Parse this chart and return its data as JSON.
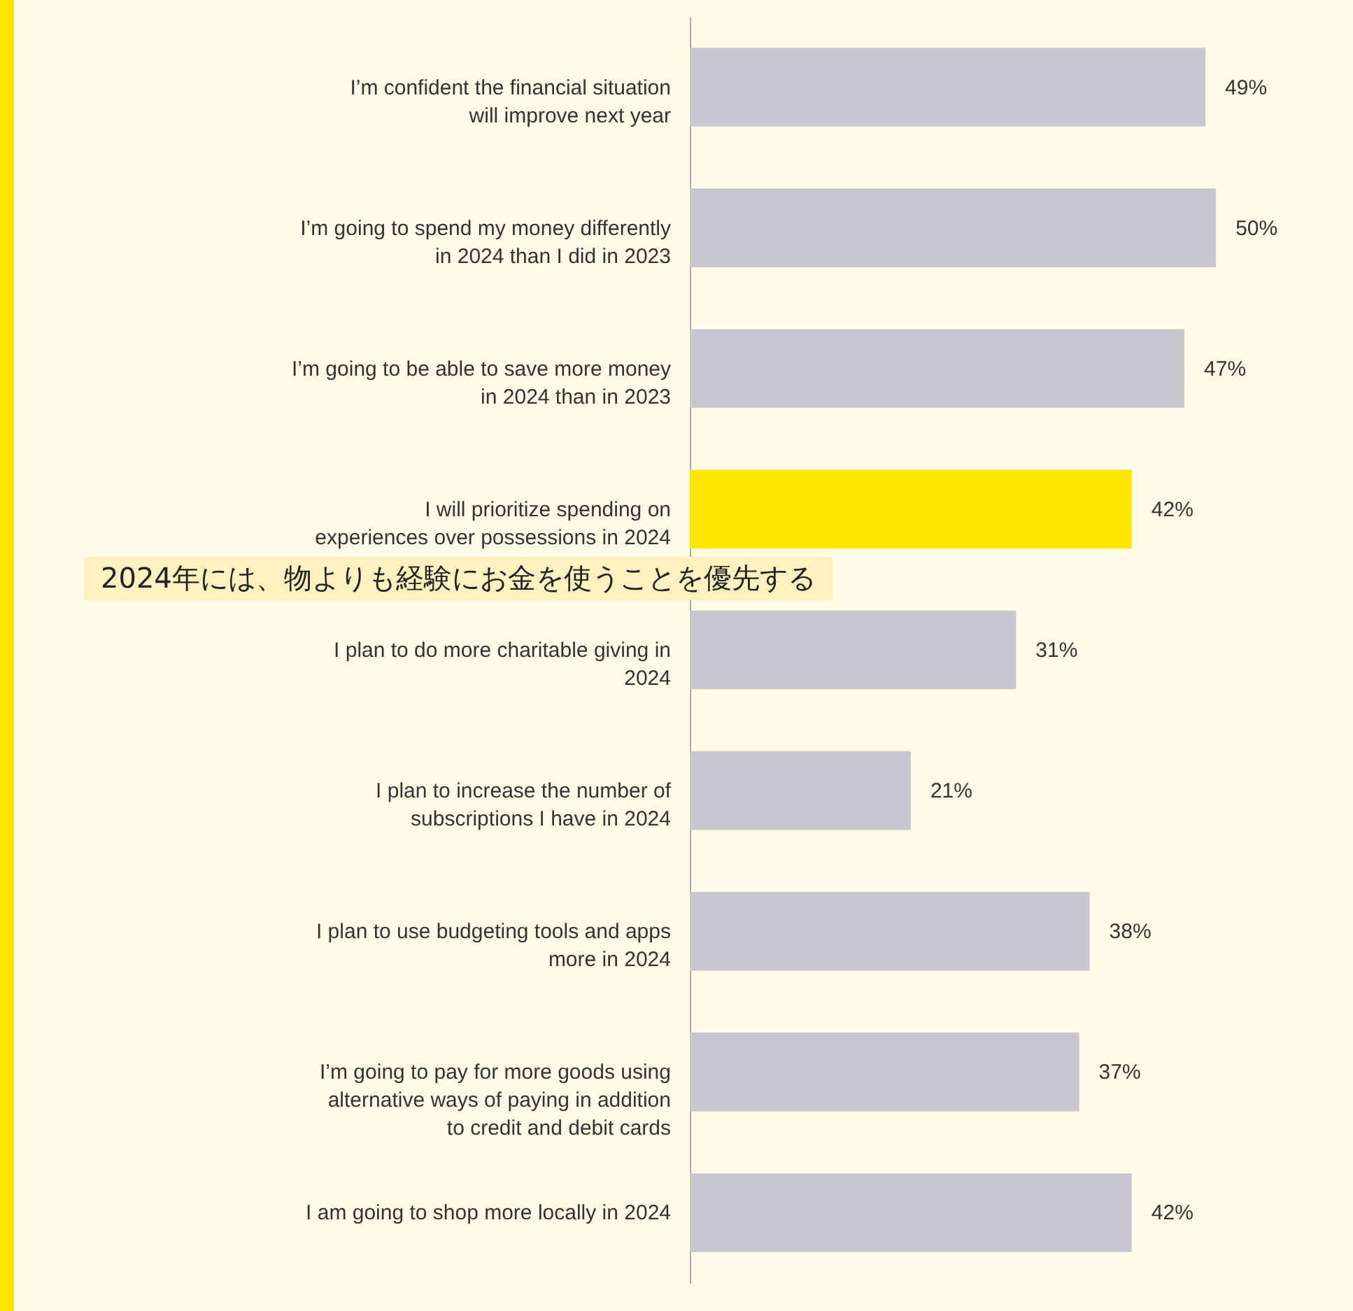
{
  "chart_data": {
    "type": "bar",
    "orientation": "horizontal",
    "categories": [
      "I’m confident the financial situation will improve next year",
      "I’m going to spend my money differently in 2024 than I did in 2023",
      "I’m going to be able to save more money in 2024 than in 2023",
      "I will prioritize spending on experiences over possessions in 2024",
      "I plan to do more charitable giving in 2024",
      "I plan to increase the number of subscriptions I have in 2024",
      "I plan to use budgeting tools and apps more in 2024",
      "I’m going to pay for more goods using alternative ways of paying in addition to credit and debit cards",
      "I am going to shop more locally in 2024"
    ],
    "values": [
      49,
      50,
      47,
      42,
      31,
      21,
      38,
      37,
      42
    ],
    "value_labels": [
      "49%",
      "50%",
      "47%",
      "42%",
      "31%",
      "21%",
      "38%",
      "37%",
      "42%"
    ],
    "colors": [
      "#c8c7cf",
      "#c8c7cf",
      "#c8c7cf",
      "#ffe600",
      "#c8c7cf",
      "#c8c7cf",
      "#c8c7cf",
      "#c8c7cf",
      "#c8c7cf"
    ],
    "annotations": [
      "2024年には、物よりも経験にお金を使うことを優先する"
    ]
  }
}
